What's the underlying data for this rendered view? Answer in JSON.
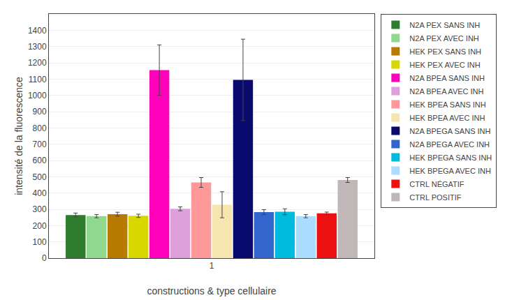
{
  "chart_data": {
    "type": "bar",
    "xlabel": "constructions & type cellulaire",
    "ylabel": "intensité de la fluorescence",
    "categories": [
      "1"
    ],
    "series": [
      {
        "name": "N2A PEX SANS INH",
        "color": "#2e7d2e",
        "values": [
          265
        ],
        "errors": [
          12
        ]
      },
      {
        "name": "N2A PEX AVEC INH",
        "color": "#90d890",
        "values": [
          258
        ],
        "errors": [
          10
        ]
      },
      {
        "name": "HEK PEX SANS INH",
        "color": "#b87a00",
        "values": [
          270
        ],
        "errors": [
          12
        ]
      },
      {
        "name": "HEK PEX AVEC INH",
        "color": "#d8d800",
        "values": [
          260
        ],
        "errors": [
          10
        ]
      },
      {
        "name": "N2A BPEA SANS INH",
        "color": "#ff00bb",
        "values": [
          1155
        ],
        "errors": [
          155
        ]
      },
      {
        "name": "N2A BPEA AVEC INH",
        "color": "#dda0dd",
        "values": [
          303
        ],
        "errors": [
          12
        ]
      },
      {
        "name": "HEK BPEA SANS INH",
        "color": "#ff9999",
        "values": [
          465
        ],
        "errors": [
          30
        ]
      },
      {
        "name": "HEK BPEA AVEC INH",
        "color": "#f5e6b0",
        "values": [
          328
        ],
        "errors": [
          80
        ]
      },
      {
        "name": "N2A BPEGA SANS INH",
        "color": "#0a0a6e",
        "values": [
          1095
        ],
        "errors": [
          250
        ]
      },
      {
        "name": "N2A BPEGA AVEC INH",
        "color": "#3366cc",
        "values": [
          283
        ],
        "errors": [
          15
        ]
      },
      {
        "name": "HEK BPEGA SANS INH",
        "color": "#00bbdd",
        "values": [
          285
        ],
        "errors": [
          18
        ]
      },
      {
        "name": "HEK BPEGA AVEC INH",
        "color": "#aaddff",
        "values": [
          258
        ],
        "errors": [
          10
        ]
      },
      {
        "name": "CTRL NÉGATIF",
        "color": "#ee1111",
        "values": [
          275
        ],
        "errors": [
          8
        ]
      },
      {
        "name": "CTRL POSITIF",
        "color": "#c0b8b8",
        "values": [
          480
        ],
        "errors": [
          15
        ]
      }
    ],
    "ylim": [
      0,
      1500
    ],
    "yticks": [
      0,
      100,
      200,
      300,
      400,
      500,
      600,
      700,
      800,
      900,
      1000,
      1100,
      1200,
      1300,
      1400
    ],
    "grid": true,
    "legend": "right"
  }
}
